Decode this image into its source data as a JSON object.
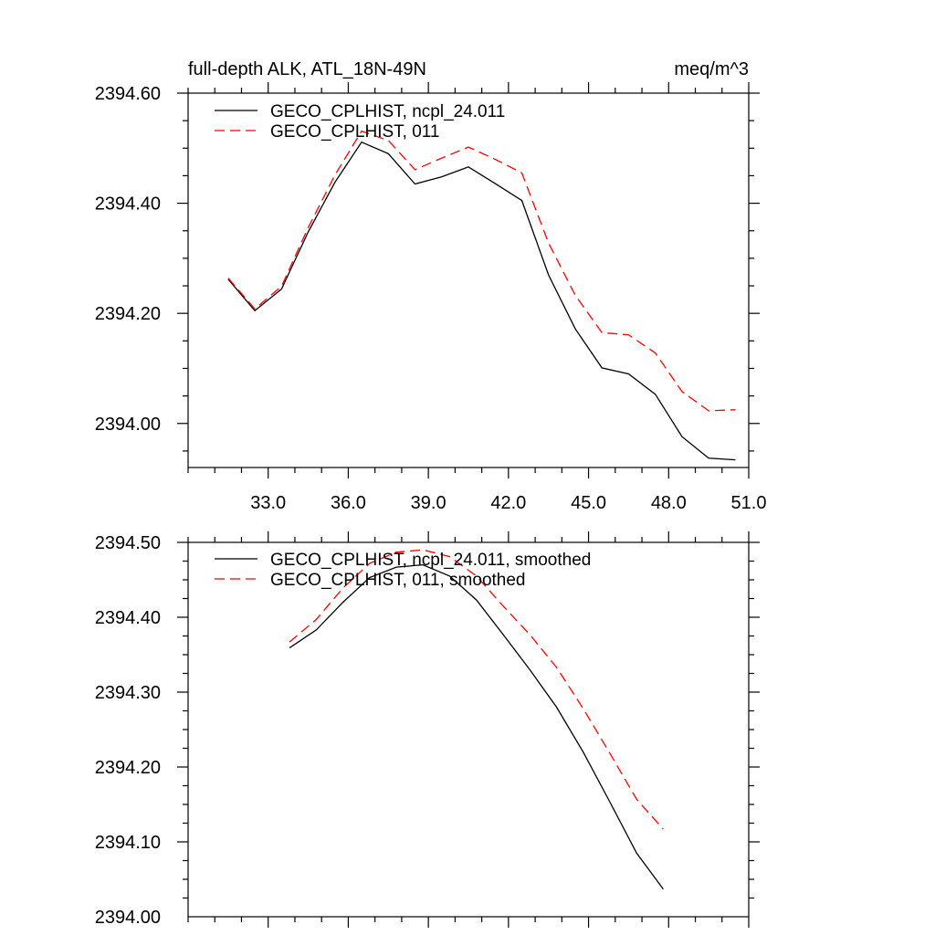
{
  "chart_data": [
    {
      "type": "line",
      "title_left": "full-depth ALK, ATL_18N-49N",
      "title_right": "meq/m^3",
      "xlim": [
        30.0,
        51.0
      ],
      "ylim": [
        2393.92,
        2394.6
      ],
      "xticks": [
        33.0,
        36.0,
        39.0,
        42.0,
        45.0,
        48.0,
        51.0
      ],
      "xtick_labels": [
        "33.0",
        "36.0",
        "39.0",
        "42.0",
        "45.0",
        "48.0",
        "51.0"
      ],
      "yticks": [
        2394.0,
        2394.2,
        2394.4,
        2394.6
      ],
      "ytick_labels": [
        "2394.00",
        "2394.20",
        "2394.40",
        "2394.60"
      ],
      "x": [
        31.5,
        32.5,
        33.5,
        34.5,
        35.5,
        36.5,
        37.5,
        38.5,
        39.5,
        40.5,
        41.5,
        42.5,
        43.5,
        44.5,
        45.5,
        46.5,
        47.5,
        48.5,
        49.5,
        50.5
      ],
      "series": [
        {
          "name": "GECO_CPLHIST, ncpl_24.011",
          "color": "#000000",
          "style": "solid",
          "values": [
            2394.262,
            2394.205,
            2394.244,
            2394.348,
            2394.438,
            2394.511,
            2394.49,
            2394.435,
            2394.448,
            2394.466,
            2394.436,
            2394.405,
            2394.27,
            2394.172,
            2394.101,
            2394.09,
            2394.053,
            2393.976,
            2393.937,
            2393.934
          ]
        },
        {
          "name": "GECO_CPLHIST, 011",
          "color": "#ff0000",
          "style": "dashed",
          "values": [
            2394.264,
            2394.208,
            2394.249,
            2394.356,
            2394.451,
            2394.531,
            2394.514,
            2394.461,
            2394.482,
            2394.502,
            2394.48,
            2394.455,
            2394.328,
            2394.233,
            2394.165,
            2394.161,
            2394.128,
            2394.058,
            2394.023,
            2394.025
          ]
        }
      ]
    },
    {
      "type": "line",
      "xlim": [
        30.0,
        51.0
      ],
      "ylim": [
        2394.0,
        2394.5
      ],
      "xticks": [
        33.0,
        36.0,
        39.0,
        42.0,
        45.0,
        48.0,
        51.0
      ],
      "yticks": [
        2394.0,
        2394.1,
        2394.2,
        2394.3,
        2394.4,
        2394.5
      ],
      "ytick_labels": [
        "2394.00",
        "2394.10",
        "2394.20",
        "2394.30",
        "2394.40",
        "2394.50"
      ],
      "x": [
        33.8,
        34.8,
        35.8,
        36.8,
        37.8,
        38.8,
        39.8,
        40.8,
        41.8,
        42.8,
        43.8,
        44.8,
        45.8,
        46.8,
        47.8
      ],
      "series": [
        {
          "name": "GECO_CPLHIST, ncpl_24.011, smoothed",
          "color": "#000000",
          "style": "solid",
          "values": [
            2394.359,
            2394.383,
            2394.42,
            2394.453,
            2394.467,
            2394.47,
            2394.455,
            2394.423,
            2394.377,
            2394.33,
            2394.28,
            2394.22,
            2394.153,
            2394.085,
            2394.037
          ]
        },
        {
          "name": "GECO_CPLHIST, 011, smoothed",
          "color": "#ff0000",
          "style": "dashed",
          "values": [
            2394.367,
            2394.397,
            2394.439,
            2394.472,
            2394.487,
            2394.49,
            2394.481,
            2394.455,
            2394.415,
            2394.377,
            2394.333,
            2394.278,
            2394.218,
            2394.157,
            2394.117
          ]
        }
      ]
    }
  ]
}
